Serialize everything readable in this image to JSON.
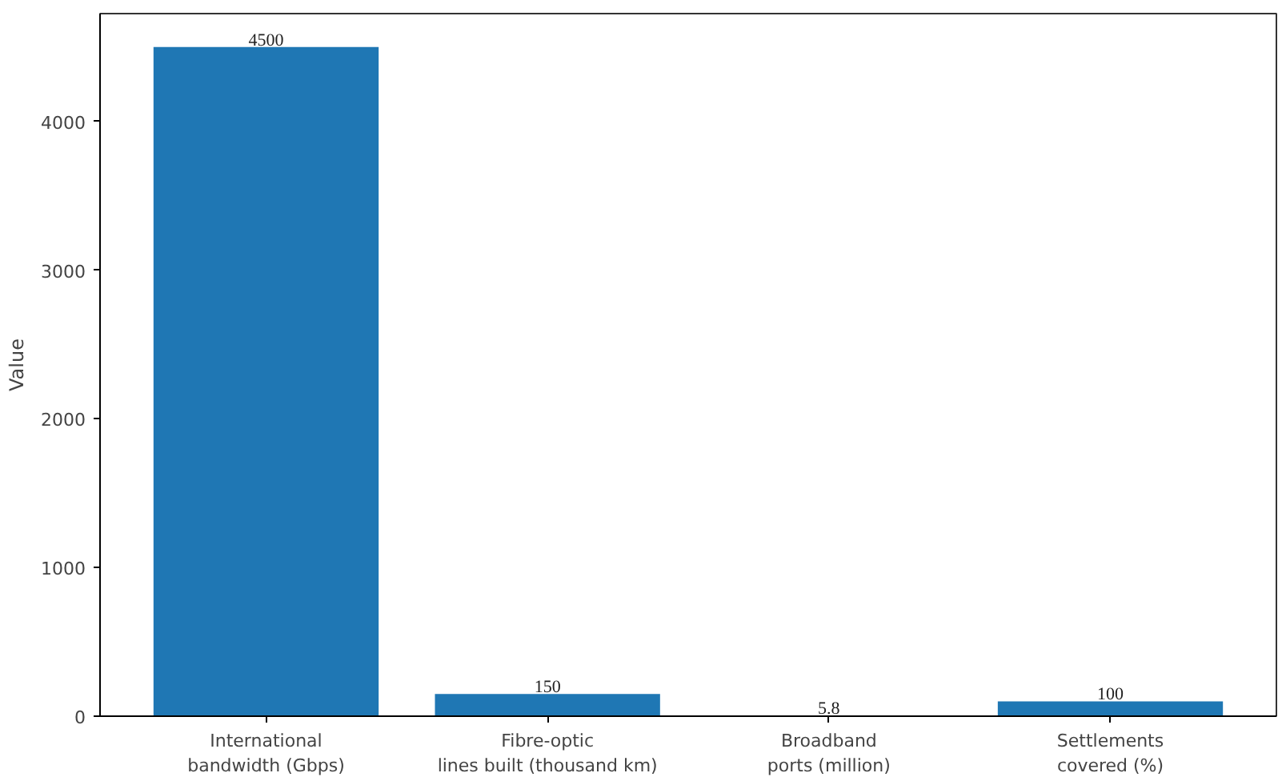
{
  "chart_data": {
    "type": "bar",
    "ylabel": "Value",
    "categories": [
      "International\nbandwidth (Gbps)",
      "Fibre-optic\nlines built (thousand km)",
      "Broadband\nports (million)",
      "Settlements\ncovered (%)"
    ],
    "values": [
      4500,
      150,
      5.8,
      100
    ],
    "color": "#1f77b4",
    "ylim": [
      0,
      4725
    ],
    "yticks": [
      0,
      1000,
      2000,
      3000,
      4000
    ],
    "grid": false,
    "data_labels": true
  }
}
